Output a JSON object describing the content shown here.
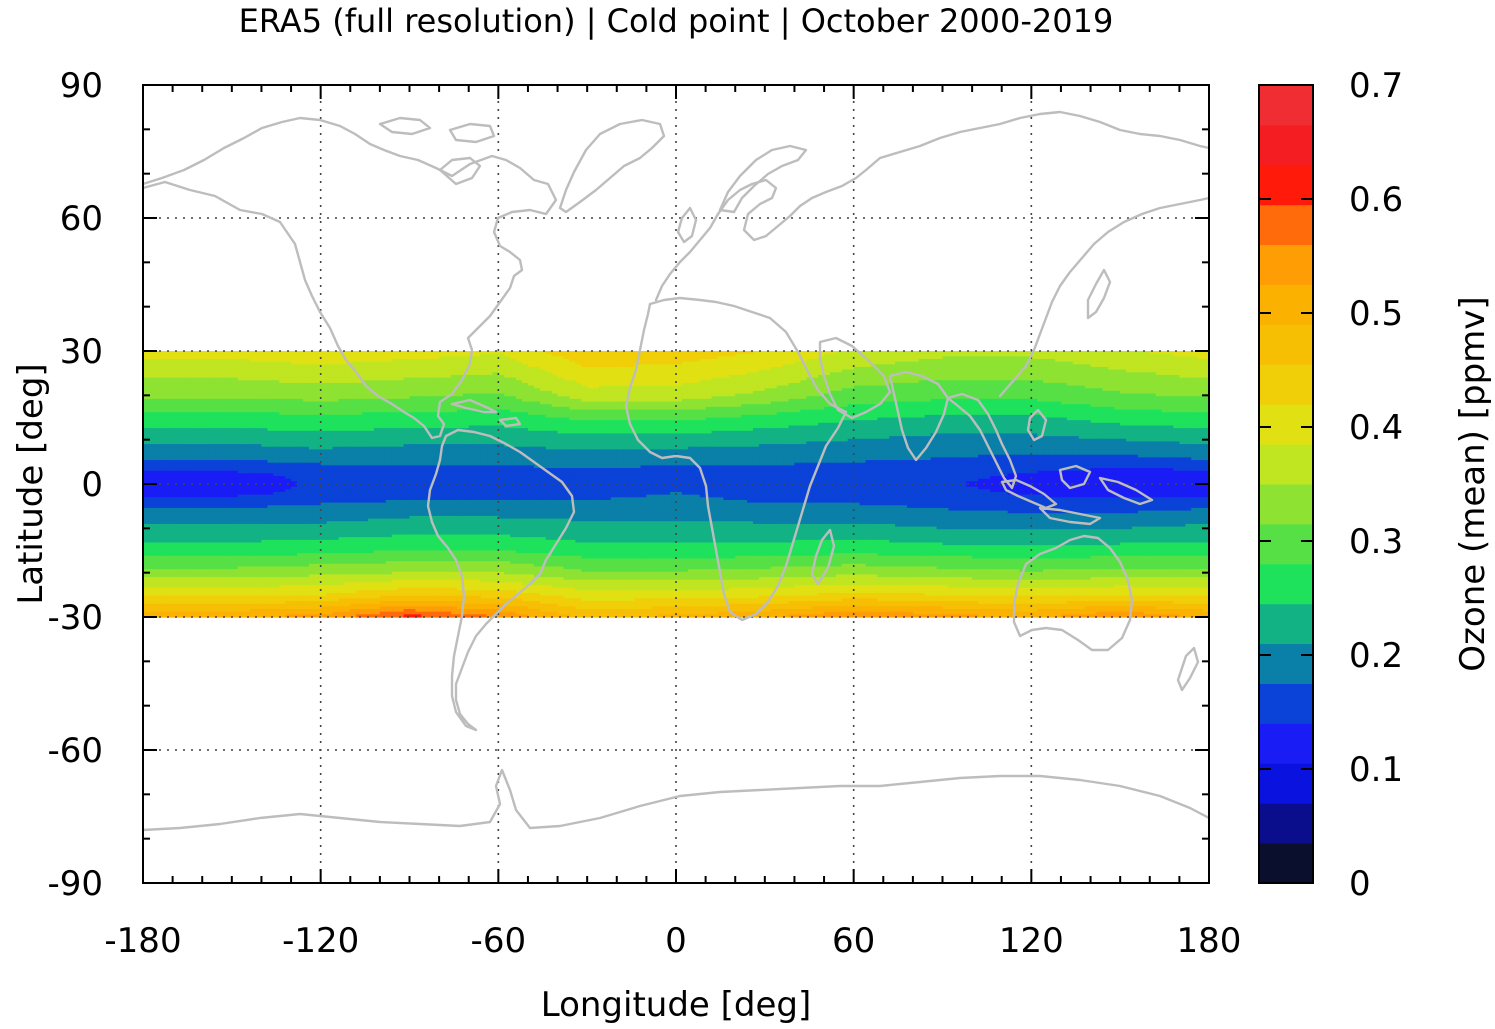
{
  "chart_data": {
    "type": "heatmap",
    "title": "ERA5 (full resolution) | Cold point | October 2000-2019",
    "xlabel": "Longitude [deg]",
    "ylabel": "Latitude [deg]",
    "xlim": [
      -180,
      180
    ],
    "ylim": [
      -90,
      90
    ],
    "x_ticks": [
      -180,
      -120,
      -60,
      0,
      60,
      120,
      180
    ],
    "y_ticks": [
      90,
      60,
      30,
      0,
      -30,
      -60,
      -90
    ],
    "grid": true,
    "data_lat_range": [
      -30,
      30
    ],
    "colorbar": {
      "label": "Ozone (mean) [ppmv]",
      "ticks": [
        0,
        0.1,
        0.2,
        0.3,
        0.4,
        0.5,
        0.6,
        0.7
      ],
      "range": [
        0,
        0.7
      ],
      "level_step": 0.035,
      "colors": [
        "#0a0f2e",
        "#0a0d8c",
        "#0a12e0",
        "#1a1cf6",
        "#0b42d8",
        "#0a7fa8",
        "#12b285",
        "#1ee25c",
        "#56e045",
        "#8ee232",
        "#c0e521",
        "#e1e012",
        "#f0ce08",
        "#f6bf04",
        "#fbb100",
        "#ff9d05",
        "#ff6a0a",
        "#ff1a0a",
        "#f41e22",
        "#ef2d32",
        "#f37f7f",
        "#ffcccc"
      ]
    },
    "field_profiles": [
      {
        "lon": -180,
        "values": [
          0.52,
          0.41,
          0.33,
          0.26,
          0.22,
          0.17,
          0.125,
          0.11,
          0.12,
          0.17,
          0.22,
          0.27,
          0.32,
          0.4
        ]
      },
      {
        "lon": -150,
        "values": [
          0.52,
          0.41,
          0.33,
          0.26,
          0.22,
          0.17,
          0.13,
          0.123,
          0.13,
          0.17,
          0.22,
          0.27,
          0.32,
          0.4
        ]
      },
      {
        "lon": -120,
        "values": [
          0.54,
          0.42,
          0.34,
          0.27,
          0.22,
          0.18,
          0.15,
          0.145,
          0.15,
          0.18,
          0.23,
          0.27,
          0.33,
          0.41
        ]
      },
      {
        "lon": -90,
        "values": [
          0.61,
          0.45,
          0.35,
          0.28,
          0.23,
          0.19,
          0.155,
          0.15,
          0.16,
          0.18,
          0.22,
          0.27,
          0.32,
          0.4
        ]
      },
      {
        "lon": -60,
        "values": [
          0.56,
          0.44,
          0.35,
          0.28,
          0.23,
          0.19,
          0.16,
          0.15,
          0.16,
          0.18,
          0.22,
          0.26,
          0.31,
          0.39
        ]
      },
      {
        "lon": -30,
        "values": [
          0.48,
          0.4,
          0.32,
          0.26,
          0.22,
          0.19,
          0.16,
          0.155,
          0.16,
          0.19,
          0.23,
          0.29,
          0.37,
          0.45
        ]
      },
      {
        "lon": 0,
        "values": [
          0.5,
          0.4,
          0.32,
          0.26,
          0.22,
          0.19,
          0.175,
          0.16,
          0.16,
          0.18,
          0.23,
          0.29,
          0.37,
          0.44
        ]
      },
      {
        "lon": 30,
        "values": [
          0.52,
          0.41,
          0.33,
          0.26,
          0.22,
          0.18,
          0.16,
          0.155,
          0.16,
          0.18,
          0.22,
          0.27,
          0.34,
          0.42
        ]
      },
      {
        "lon": 60,
        "values": [
          0.56,
          0.43,
          0.34,
          0.27,
          0.22,
          0.18,
          0.155,
          0.15,
          0.155,
          0.175,
          0.21,
          0.25,
          0.3,
          0.38
        ]
      },
      {
        "lon": 90,
        "values": [
          0.54,
          0.42,
          0.33,
          0.26,
          0.21,
          0.17,
          0.15,
          0.145,
          0.15,
          0.17,
          0.2,
          0.24,
          0.29,
          0.36
        ]
      },
      {
        "lon": 120,
        "values": [
          0.52,
          0.41,
          0.32,
          0.26,
          0.21,
          0.16,
          0.135,
          0.125,
          0.135,
          0.16,
          0.2,
          0.24,
          0.29,
          0.36
        ]
      },
      {
        "lon": 150,
        "values": [
          0.56,
          0.42,
          0.33,
          0.26,
          0.21,
          0.16,
          0.125,
          0.11,
          0.12,
          0.16,
          0.21,
          0.26,
          0.31,
          0.38
        ]
      },
      {
        "lon": 180,
        "values": [
          0.52,
          0.41,
          0.33,
          0.26,
          0.22,
          0.17,
          0.125,
          0.11,
          0.12,
          0.17,
          0.22,
          0.27,
          0.32,
          0.4
        ]
      }
    ],
    "field_profile_lats": [
      -30,
      -25,
      -20,
      -15,
      -10,
      -5,
      -2,
      0,
      2,
      5,
      10,
      15,
      20,
      30
    ],
    "coastline_color": "#bdbdbd"
  }
}
